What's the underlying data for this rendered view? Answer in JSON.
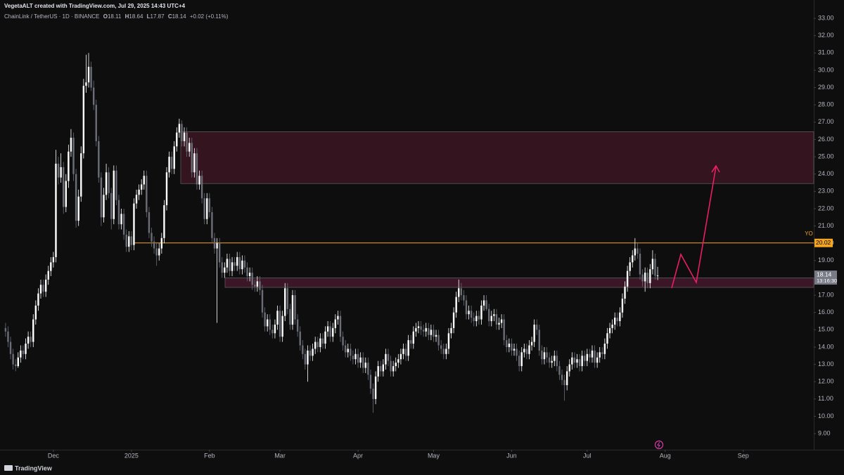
{
  "header": {
    "author": "VegetaALT created with TradingView.com, Jul 29, 2025 14:43 UTC+4",
    "symbol": "ChainLink / TetherUS · 1D · BINANCE",
    "legend_keys": [
      "O",
      "H",
      "L",
      "C"
    ],
    "change": "+0.02 (+0.11%)"
  },
  "footer": {
    "brand": "TradingView"
  },
  "chart_data": {
    "type": "candlestick",
    "up_color": "#ffffff",
    "down_color": "#6b6e78",
    "ylim": [
      8.07,
      34.06
    ],
    "yticks": [
      {
        "value": 33,
        "label": "33.00"
      },
      {
        "value": 32,
        "label": "32.00"
      },
      {
        "value": 31,
        "label": "31.00"
      },
      {
        "value": 30,
        "label": "30.00"
      },
      {
        "value": 29,
        "label": "29.00"
      },
      {
        "value": 28,
        "label": "28.00"
      },
      {
        "value": 27,
        "label": "27.00"
      },
      {
        "value": 26,
        "label": "26.00"
      },
      {
        "value": 25,
        "label": "25.00"
      },
      {
        "value": 24,
        "label": "24.00"
      },
      {
        "value": 23,
        "label": "23.00"
      },
      {
        "value": 22,
        "label": "22.00"
      },
      {
        "value": 21,
        "label": "21.00"
      },
      {
        "value": 20,
        "label": "20.00"
      },
      {
        "value": 19,
        "label": "19.00"
      },
      {
        "value": 18,
        "label": "18.00"
      },
      {
        "value": 17,
        "label": "17.00"
      },
      {
        "value": 16,
        "label": "16.00"
      },
      {
        "value": 15,
        "label": "15.00"
      },
      {
        "value": 14,
        "label": "14.00"
      },
      {
        "value": 13,
        "label": "13.00"
      },
      {
        "value": 12,
        "label": "12.00"
      },
      {
        "value": 11,
        "label": "11.00"
      },
      {
        "value": 10,
        "label": "10.00"
      },
      {
        "value": 9,
        "label": "9.00"
      }
    ],
    "xlim": [
      -2.2,
      321
    ],
    "xticks": [
      {
        "value": 19,
        "label": "Dec"
      },
      {
        "value": 50,
        "label": "2025"
      },
      {
        "value": 81,
        "label": "Feb"
      },
      {
        "value": 109,
        "label": "Mar"
      },
      {
        "value": 140,
        "label": "Apr"
      },
      {
        "value": 170,
        "label": "May"
      },
      {
        "value": 201,
        "label": "Jun"
      },
      {
        "value": 231,
        "label": "Jul"
      },
      {
        "value": 262,
        "label": "Aug"
      },
      {
        "value": 293,
        "label": "Sep"
      }
    ],
    "level": {
      "label": "YO",
      "value": 20.02,
      "color": "#f5a623"
    },
    "countdown": "13:16:30",
    "zones": [
      {
        "top": 26.45,
        "bottom": 23.45
      },
      {
        "top": 18.0,
        "bottom": 17.45
      }
    ],
    "ohlc": {
      "open": [
        15.1,
        14.9,
        14.3,
        13.6,
        13.0,
        12.9,
        13.4,
        13.8,
        13.6,
        14.2,
        14.6,
        14.3,
        15.6,
        16.4,
        17.1,
        17.6,
        17.2,
        17.9,
        18.4,
        18.9,
        19.2,
        24.6,
        23.8,
        24.4,
        22.1,
        23.6,
        25.3,
        26.1,
        24.0,
        21.3,
        22.7,
        25.2,
        29.1,
        29.3,
        30.2,
        29.0,
        28.0,
        25.9,
        23.8,
        21.5,
        22.8,
        24.1,
        22.9,
        21.4,
        24.2,
        22.5,
        21.1,
        21.7,
        20.5,
        19.8,
        20.4,
        19.9,
        22.3,
        22.8,
        23.1,
        23.4,
        23.9,
        21.8,
        20.6,
        20.1,
        19.7,
        19.3,
        19.7,
        20.3,
        22.2,
        24.1,
        25.0,
        24.3,
        25.6,
        26.4,
        26.9,
        25.9,
        26.4,
        25.3,
        25.8,
        24.1,
        25.2,
        23.4,
        23.9,
        22.6,
        21.4,
        22.6,
        21.8,
        20.3,
        19.7,
        20.0,
        18.9,
        18.3,
        18.6,
        19.1,
        18.4,
        18.9,
        18.7,
        19.2,
        18.5,
        19.0,
        18.6,
        18.1,
        18.3,
        17.6,
        17.5,
        17.8,
        17.3,
        16.0,
        15.2,
        15.6,
        15.0,
        14.8,
        15.3,
        16.1,
        14.6,
        15.8,
        17.4,
        16.2,
        15.3,
        17.0,
        15.6,
        14.9,
        14.1,
        13.6,
        13.0,
        13.8,
        13.5,
        13.9,
        14.3,
        14.0,
        14.5,
        14.2,
        14.9,
        15.2,
        14.6,
        15.1,
        15.6,
        15.8,
        14.6,
        14.1,
        13.7,
        13.9,
        13.5,
        13.3,
        13.6,
        13.1,
        13.4,
        12.8,
        13.1,
        12.4,
        11.6,
        11.0,
        12.3,
        12.9,
        12.6,
        13.0,
        13.6,
        13.2,
        12.6,
        12.9,
        13.1,
        13.3,
        13.6,
        13.9,
        13.5,
        14.4,
        14.2,
        14.9,
        15.1,
        15.2,
        15.0,
        14.9,
        15.1,
        14.7,
        15.0,
        14.6,
        14.7,
        14.1,
        13.9,
        13.6,
        13.9,
        14.8,
        15.1,
        16.0,
        16.9,
        17.4,
        17.0,
        16.7,
        15.9,
        16.1,
        15.7,
        15.5,
        15.8,
        15.6,
        16.4,
        16.7,
        16.2,
        15.5,
        15.8,
        15.9,
        15.3,
        15.4,
        15.6,
        14.4,
        14.0,
        14.2,
        13.8,
        13.9,
        13.5,
        12.9,
        13.7,
        13.9,
        13.6,
        14.1,
        14.3,
        15.3,
        15.0,
        13.8,
        13.3,
        13.7,
        13.4,
        13.1,
        13.2,
        13.5,
        12.9,
        12.4,
        12.1,
        11.8,
        12.6,
        13.0,
        13.4,
        13.1,
        13.3,
        12.9,
        13.5,
        13.2,
        13.6,
        13.4,
        13.8,
        13.1,
        13.4,
        13.7,
        13.6,
        14.2,
        14.8,
        15.1,
        15.3,
        15.7,
        15.5,
        16.0,
        16.8,
        17.5,
        18.4,
        18.9,
        19.3,
        19.7,
        19.4,
        18.2,
        17.8,
        18.3,
        17.7,
        18.5,
        19.1,
        18.11
      ],
      "high": [
        15.4,
        15.2,
        14.6,
        13.9,
        13.3,
        13.7,
        14.1,
        14.1,
        14.5,
        14.9,
        14.9,
        15.9,
        16.7,
        17.4,
        17.9,
        17.9,
        18.2,
        18.7,
        19.2,
        19.5,
        25.4,
        25.0,
        25.2,
        24.7,
        24.0,
        25.7,
        26.6,
        26.4,
        24.3,
        23.1,
        25.6,
        29.5,
        30.9,
        31.0,
        30.5,
        29.4,
        28.3,
        26.2,
        24.1,
        23.2,
        24.6,
        24.4,
        23.2,
        24.5,
        24.5,
        22.8,
        22.0,
        22.0,
        20.8,
        20.7,
        20.7,
        22.6,
        23.1,
        23.4,
        23.7,
        24.2,
        24.2,
        22.1,
        20.9,
        20.4,
        20.0,
        20.0,
        20.6,
        22.5,
        24.4,
        25.3,
        25.3,
        25.9,
        26.7,
        27.2,
        27.1,
        26.7,
        26.7,
        26.1,
        26.1,
        25.5,
        25.5,
        24.2,
        24.2,
        22.9,
        22.9,
        22.9,
        22.1,
        20.6,
        20.3,
        20.3,
        19.2,
        18.9,
        19.4,
        19.4,
        19.2,
        19.2,
        19.5,
        19.5,
        19.3,
        19.3,
        18.9,
        18.6,
        18.6,
        17.9,
        18.1,
        18.1,
        17.6,
        16.3,
        15.9,
        15.9,
        15.3,
        15.6,
        16.4,
        16.4,
        16.1,
        17.7,
        17.7,
        16.5,
        17.3,
        17.3,
        15.9,
        15.2,
        14.4,
        13.9,
        14.1,
        14.1,
        14.2,
        14.6,
        14.6,
        14.8,
        14.8,
        15.2,
        15.5,
        15.5,
        15.4,
        15.9,
        16.1,
        16.1,
        14.9,
        14.4,
        14.2,
        14.2,
        13.8,
        13.9,
        13.9,
        13.7,
        13.7,
        13.4,
        13.4,
        12.7,
        11.9,
        12.6,
        13.2,
        13.2,
        13.3,
        13.9,
        13.9,
        13.5,
        13.2,
        13.4,
        13.6,
        13.9,
        14.2,
        14.2,
        14.7,
        14.7,
        15.2,
        15.4,
        15.5,
        15.5,
        15.3,
        15.4,
        15.4,
        15.3,
        15.3,
        15.0,
        15.0,
        14.4,
        14.2,
        14.2,
        15.1,
        15.4,
        16.3,
        17.2,
        17.9,
        17.7,
        17.3,
        17.0,
        16.4,
        16.4,
        16.0,
        16.1,
        16.1,
        16.7,
        17.0,
        17.0,
        16.5,
        16.1,
        16.2,
        16.2,
        15.7,
        15.9,
        15.9,
        14.7,
        14.5,
        14.5,
        14.2,
        14.2,
        13.8,
        14.0,
        14.2,
        14.2,
        14.4,
        14.6,
        15.6,
        15.6,
        15.3,
        14.1,
        14.0,
        14.0,
        13.7,
        13.5,
        13.8,
        13.8,
        13.2,
        12.7,
        12.4,
        12.9,
        13.3,
        13.7,
        13.7,
        13.6,
        13.6,
        13.8,
        13.8,
        13.9,
        13.9,
        14.1,
        14.1,
        13.7,
        14.0,
        14.0,
        14.5,
        15.1,
        15.4,
        15.6,
        16.0,
        16.0,
        16.3,
        17.1,
        17.8,
        18.7,
        19.2,
        19.6,
        20.3,
        20.0,
        19.7,
        18.5,
        18.6,
        18.6,
        18.8,
        19.6,
        19.4,
        18.64
      ],
      "low": [
        14.6,
        14.0,
        13.3,
        12.7,
        12.6,
        12.8,
        13.1,
        13.3,
        13.3,
        13.9,
        14.0,
        14.0,
        15.3,
        16.1,
        16.8,
        16.9,
        16.9,
        17.6,
        18.1,
        18.6,
        18.9,
        23.4,
        23.5,
        21.7,
        21.8,
        23.2,
        25.0,
        23.6,
        20.9,
        21.0,
        22.4,
        24.9,
        28.7,
        29.0,
        28.8,
        27.7,
        25.6,
        23.5,
        21.0,
        21.2,
        22.5,
        22.6,
        20.8,
        21.1,
        22.2,
        20.8,
        20.8,
        20.2,
        19.5,
        19.5,
        19.6,
        19.6,
        22.0,
        22.5,
        22.8,
        23.1,
        21.5,
        20.3,
        19.8,
        19.4,
        18.7,
        19.0,
        19.4,
        20.0,
        21.9,
        23.8,
        24.0,
        24.0,
        25.3,
        26.1,
        25.6,
        25.6,
        25.0,
        25.0,
        23.8,
        23.8,
        23.1,
        23.1,
        22.3,
        21.1,
        21.1,
        21.5,
        20.0,
        19.4,
        15.4,
        18.6,
        18.0,
        18.0,
        18.3,
        18.1,
        18.1,
        18.4,
        18.4,
        18.2,
        18.2,
        18.3,
        17.8,
        17.8,
        17.3,
        17.2,
        17.2,
        17.0,
        15.7,
        14.9,
        14.9,
        14.7,
        14.5,
        14.5,
        15.0,
        14.3,
        14.3,
        15.5,
        15.9,
        15.0,
        15.0,
        15.3,
        14.6,
        13.8,
        13.3,
        12.7,
        12.0,
        13.2,
        13.2,
        13.6,
        13.7,
        13.7,
        13.9,
        13.9,
        14.6,
        14.3,
        14.3,
        14.8,
        15.3,
        14.3,
        13.8,
        13.4,
        13.4,
        13.2,
        13.0,
        13.0,
        12.8,
        12.8,
        12.5,
        12.5,
        12.1,
        11.3,
        10.2,
        10.7,
        12.0,
        12.3,
        12.3,
        12.7,
        12.9,
        12.3,
        12.3,
        12.6,
        12.8,
        13.0,
        13.3,
        13.2,
        13.2,
        13.9,
        13.9,
        14.6,
        14.8,
        14.7,
        14.6,
        14.6,
        14.4,
        14.4,
        14.3,
        14.3,
        13.8,
        13.6,
        13.3,
        13.3,
        13.6,
        14.5,
        14.8,
        15.7,
        16.6,
        16.7,
        16.4,
        15.6,
        15.6,
        15.4,
        15.2,
        15.2,
        15.3,
        15.3,
        16.1,
        16.1,
        15.2,
        15.2,
        15.5,
        15.0,
        15.0,
        15.1,
        14.1,
        13.7,
        13.7,
        13.5,
        13.5,
        13.2,
        12.6,
        12.6,
        13.4,
        13.3,
        13.3,
        13.8,
        14.0,
        14.7,
        13.5,
        13.0,
        13.0,
        13.1,
        12.8,
        12.8,
        12.9,
        12.6,
        12.1,
        11.8,
        10.9,
        11.5,
        12.3,
        12.7,
        12.8,
        12.8,
        12.6,
        12.6,
        12.9,
        12.9,
        13.1,
        13.1,
        12.8,
        12.8,
        13.1,
        13.3,
        13.3,
        13.9,
        14.5,
        14.8,
        15.0,
        15.2,
        15.2,
        15.7,
        16.5,
        17.2,
        18.1,
        18.6,
        19.0,
        19.1,
        17.9,
        17.5,
        17.2,
        17.4,
        17.4,
        18.2,
        17.9,
        17.87
      ],
      "close": [
        14.9,
        14.3,
        13.6,
        13.0,
        12.9,
        13.4,
        13.8,
        13.6,
        14.2,
        14.6,
        14.3,
        15.6,
        16.4,
        17.1,
        17.6,
        17.2,
        17.9,
        18.4,
        18.9,
        19.2,
        24.6,
        23.8,
        24.4,
        22.1,
        23.6,
        25.3,
        26.1,
        24.0,
        21.3,
        22.7,
        25.2,
        29.1,
        29.3,
        30.2,
        29.0,
        28.0,
        25.9,
        23.8,
        21.5,
        22.8,
        24.1,
        22.9,
        21.4,
        24.2,
        22.5,
        21.1,
        21.7,
        20.5,
        19.8,
        20.4,
        19.9,
        22.3,
        22.8,
        23.1,
        23.4,
        23.9,
        21.8,
        20.6,
        20.1,
        19.7,
        19.3,
        19.7,
        20.3,
        22.2,
        24.1,
        25.0,
        24.3,
        25.6,
        26.4,
        26.9,
        25.9,
        26.4,
        25.3,
        25.8,
        24.1,
        25.2,
        23.4,
        23.9,
        22.6,
        21.4,
        22.6,
        21.8,
        20.3,
        19.7,
        20.0,
        18.9,
        18.3,
        18.6,
        19.1,
        18.4,
        18.9,
        18.7,
        19.2,
        18.5,
        19.0,
        18.6,
        18.1,
        18.3,
        17.6,
        17.5,
        17.8,
        17.3,
        16.0,
        15.2,
        15.6,
        15.0,
        14.8,
        15.3,
        16.1,
        14.6,
        15.8,
        17.4,
        16.2,
        15.3,
        17.0,
        15.6,
        14.9,
        14.1,
        13.6,
        13.0,
        13.8,
        13.5,
        13.9,
        14.3,
        14.0,
        14.5,
        14.2,
        14.9,
        15.2,
        14.6,
        15.1,
        15.6,
        15.8,
        14.6,
        14.1,
        13.7,
        13.9,
        13.5,
        13.3,
        13.6,
        13.1,
        13.4,
        12.8,
        13.1,
        12.4,
        11.6,
        11.0,
        12.3,
        12.9,
        12.6,
        13.0,
        13.6,
        13.2,
        12.6,
        12.9,
        13.1,
        13.3,
        13.6,
        13.9,
        13.5,
        14.4,
        14.2,
        14.9,
        15.1,
        15.2,
        15.0,
        14.9,
        15.1,
        14.7,
        15.0,
        14.6,
        14.7,
        14.1,
        13.9,
        13.6,
        13.9,
        14.8,
        15.1,
        16.0,
        16.9,
        17.4,
        17.0,
        16.7,
        15.9,
        16.1,
        15.7,
        15.5,
        15.8,
        15.6,
        16.4,
        16.7,
        16.2,
        15.5,
        15.8,
        15.9,
        15.3,
        15.4,
        15.6,
        14.4,
        14.0,
        14.2,
        13.8,
        13.9,
        13.5,
        12.9,
        13.7,
        13.9,
        13.6,
        14.1,
        14.3,
        15.3,
        15.0,
        13.8,
        13.3,
        13.7,
        13.4,
        13.1,
        13.2,
        13.5,
        12.9,
        12.4,
        12.1,
        11.8,
        12.6,
        13.0,
        13.4,
        13.1,
        13.3,
        12.9,
        13.5,
        13.2,
        13.6,
        13.4,
        13.8,
        13.1,
        13.4,
        13.7,
        13.6,
        14.2,
        14.8,
        15.1,
        15.3,
        15.7,
        15.5,
        16.0,
        16.8,
        17.5,
        18.4,
        18.9,
        19.3,
        19.7,
        19.4,
        18.2,
        17.8,
        18.3,
        17.7,
        18.5,
        19.1,
        18.12,
        18.14
      ]
    }
  }
}
